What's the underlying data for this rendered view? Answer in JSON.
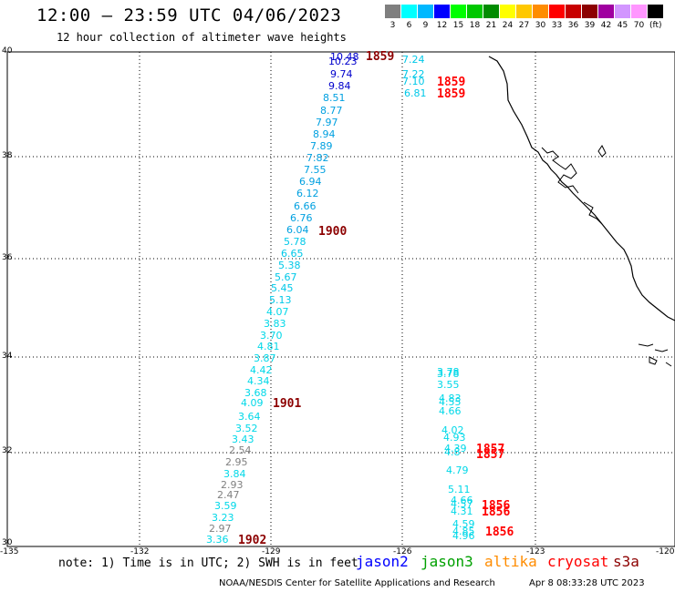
{
  "header": {
    "title": "12:00 – 23:59 UTC 04/06/2023",
    "subtitle": "12 hour collection of altimeter wave heights"
  },
  "color_scale": {
    "unit": "(ft)",
    "items": [
      {
        "label": "3",
        "color": "#7f7f7f"
      },
      {
        "label": "6",
        "color": "#00ffff"
      },
      {
        "label": "9",
        "color": "#00b8ff"
      },
      {
        "label": "12",
        "color": "#0000ff"
      },
      {
        "label": "15",
        "color": "#00ff00"
      },
      {
        "label": "18",
        "color": "#00c800"
      },
      {
        "label": "21",
        "color": "#008c00"
      },
      {
        "label": "24",
        "color": "#ffff00"
      },
      {
        "label": "27",
        "color": "#ffc800"
      },
      {
        "label": "30",
        "color": "#ff8c00"
      },
      {
        "label": "33",
        "color": "#ff0000"
      },
      {
        "label": "36",
        "color": "#c80000"
      },
      {
        "label": "39",
        "color": "#8c0000"
      },
      {
        "label": "42",
        "color": "#a000a0"
      },
      {
        "label": "45",
        "color": "#d296ff"
      },
      {
        "label": "70",
        "color": "#ff96ff"
      },
      {
        "label": "",
        "color": "#000000"
      }
    ]
  },
  "axes": {
    "lat_labels": [
      "40",
      "38",
      "36",
      "34",
      "32",
      "30"
    ],
    "lon_labels": [
      "-135",
      "-132",
      "-129",
      "-126",
      "-123",
      "-120"
    ]
  },
  "observations": [
    {
      "v": "10.48",
      "c": "#0000cc"
    },
    {
      "v": "10.23",
      "c": "#0000cc"
    },
    {
      "v": "9.74",
      "c": "#0000cc"
    },
    {
      "v": "9.84",
      "c": "#0000cc"
    },
    {
      "v": "8.51",
      "c": "#00a0e0"
    },
    {
      "v": "8.77",
      "c": "#00a0e0"
    },
    {
      "v": "7.97",
      "c": "#00a0e0"
    },
    {
      "v": "8.94",
      "c": "#00a0e0"
    },
    {
      "v": "7.89",
      "c": "#00a0e0"
    },
    {
      "v": "7.82",
      "c": "#00a0e0"
    },
    {
      "v": "7.55",
      "c": "#00a0e0"
    },
    {
      "v": "6.94",
      "c": "#00a0e0"
    },
    {
      "v": "6.12",
      "c": "#00a0e0"
    },
    {
      "v": "6.66",
      "c": "#00a0e0"
    },
    {
      "v": "6.76",
      "c": "#00a0e0"
    },
    {
      "v": "6.04",
      "c": "#00a0e0"
    },
    {
      "v": "5.78",
      "c": "#00c8e8"
    },
    {
      "v": "6.65",
      "c": "#00c8e8"
    },
    {
      "v": "5.38",
      "c": "#00c8e8"
    },
    {
      "v": "5.67",
      "c": "#00c8e8"
    },
    {
      "v": "5.45",
      "c": "#00c8e8"
    },
    {
      "v": "5.13",
      "c": "#00c8e8"
    },
    {
      "v": "4.07",
      "c": "#00d8e8"
    },
    {
      "v": "3.83",
      "c": "#00d8e8"
    },
    {
      "v": "3.70",
      "c": "#00d8e8"
    },
    {
      "v": "4.81",
      "c": "#00d8e8"
    },
    {
      "v": "3.87",
      "c": "#00d8e8"
    },
    {
      "v": "4.42",
      "c": "#00d8e8"
    },
    {
      "v": "4.34",
      "c": "#00d8e8"
    },
    {
      "v": "3.68",
      "c": "#00d8e8"
    },
    {
      "v": "4.09",
      "c": "#00d8e8"
    },
    {
      "v": "3.64",
      "c": "#00d8e8"
    },
    {
      "v": "3.52",
      "c": "#00d8e8"
    },
    {
      "v": "3.43",
      "c": "#00d8e8"
    },
    {
      "v": "2.54",
      "c": "#808080"
    },
    {
      "v": "2.95",
      "c": "#808080"
    },
    {
      "v": "3.84",
      "c": "#00d8e8"
    },
    {
      "v": "2.93",
      "c": "#808080"
    },
    {
      "v": "2.47",
      "c": "#808080"
    },
    {
      "v": "3.59",
      "c": "#00d8e8"
    },
    {
      "v": "3.23",
      "c": "#00d8e8"
    },
    {
      "v": "2.97",
      "c": "#808080"
    },
    {
      "v": "3.36",
      "c": "#00d8e8"
    },
    {
      "v": "7.24",
      "c": "#00c8e8"
    },
    {
      "v": "7.22",
      "c": "#00c8e8"
    },
    {
      "v": "7.10",
      "c": "#00c8e8"
    },
    {
      "v": "6.81",
      "c": "#00c8e8"
    },
    {
      "v": "3.78",
      "c": "#00d8e8"
    },
    {
      "v": "3.78",
      "c": "#00d8e8"
    },
    {
      "v": "3.55",
      "c": "#00d8e8"
    },
    {
      "v": "4.83",
      "c": "#00d8e8"
    },
    {
      "v": "4.55",
      "c": "#00d8e8"
    },
    {
      "v": "4.66",
      "c": "#00d8e8"
    },
    {
      "v": "4.02",
      "c": "#00d8e8"
    },
    {
      "v": "4.93",
      "c": "#00d8e8"
    },
    {
      "v": "4.39",
      "c": "#00d8e8"
    },
    {
      "v": "4.8",
      "c": "#00d8e8"
    },
    {
      "v": "4.79",
      "c": "#00d8e8"
    },
    {
      "v": "5.11",
      "c": "#00d8e8"
    },
    {
      "v": "4.66",
      "c": "#00d8e8"
    },
    {
      "v": "4.57",
      "c": "#00d8e8"
    },
    {
      "v": "4.31",
      "c": "#00d8e8"
    },
    {
      "v": "4.59",
      "c": "#00d8e8"
    },
    {
      "v": "4.85",
      "c": "#00d8e8"
    },
    {
      "v": "4.96",
      "c": "#00d8e8"
    }
  ],
  "time_labels": [
    {
      "v": "1859",
      "c": "#8c0000"
    },
    {
      "v": "1859",
      "c": "#ff0000"
    },
    {
      "v": "1859",
      "c": "#ff0000"
    },
    {
      "v": "1900",
      "c": "#8c0000"
    },
    {
      "v": "1901",
      "c": "#8c0000"
    },
    {
      "v": "1857",
      "c": "#ff0000"
    },
    {
      "v": "1857",
      "c": "#ff0000"
    },
    {
      "v": "1856",
      "c": "#ff0000"
    },
    {
      "v": "1856",
      "c": "#ff0000"
    },
    {
      "v": "1856",
      "c": "#ff0000"
    },
    {
      "v": "1902",
      "c": "#8c0000"
    }
  ],
  "note": "note: 1) Time is in UTC; 2) SWH is in feet",
  "legend": [
    {
      "label": "jason2",
      "color": "#0000ff"
    },
    {
      "label": "jason3",
      "color": "#00a000"
    },
    {
      "label": "altika",
      "color": "#ff8c00"
    },
    {
      "label": "cryosat",
      "color": "#ff0000"
    },
    {
      "label": "s3a",
      "color": "#8c0000"
    }
  ],
  "footer": {
    "credit": "NOAA/NESDIS Center for Satellite Applications and Research",
    "timestamp": "Apr  8 08:33:28 UTC 2023"
  }
}
